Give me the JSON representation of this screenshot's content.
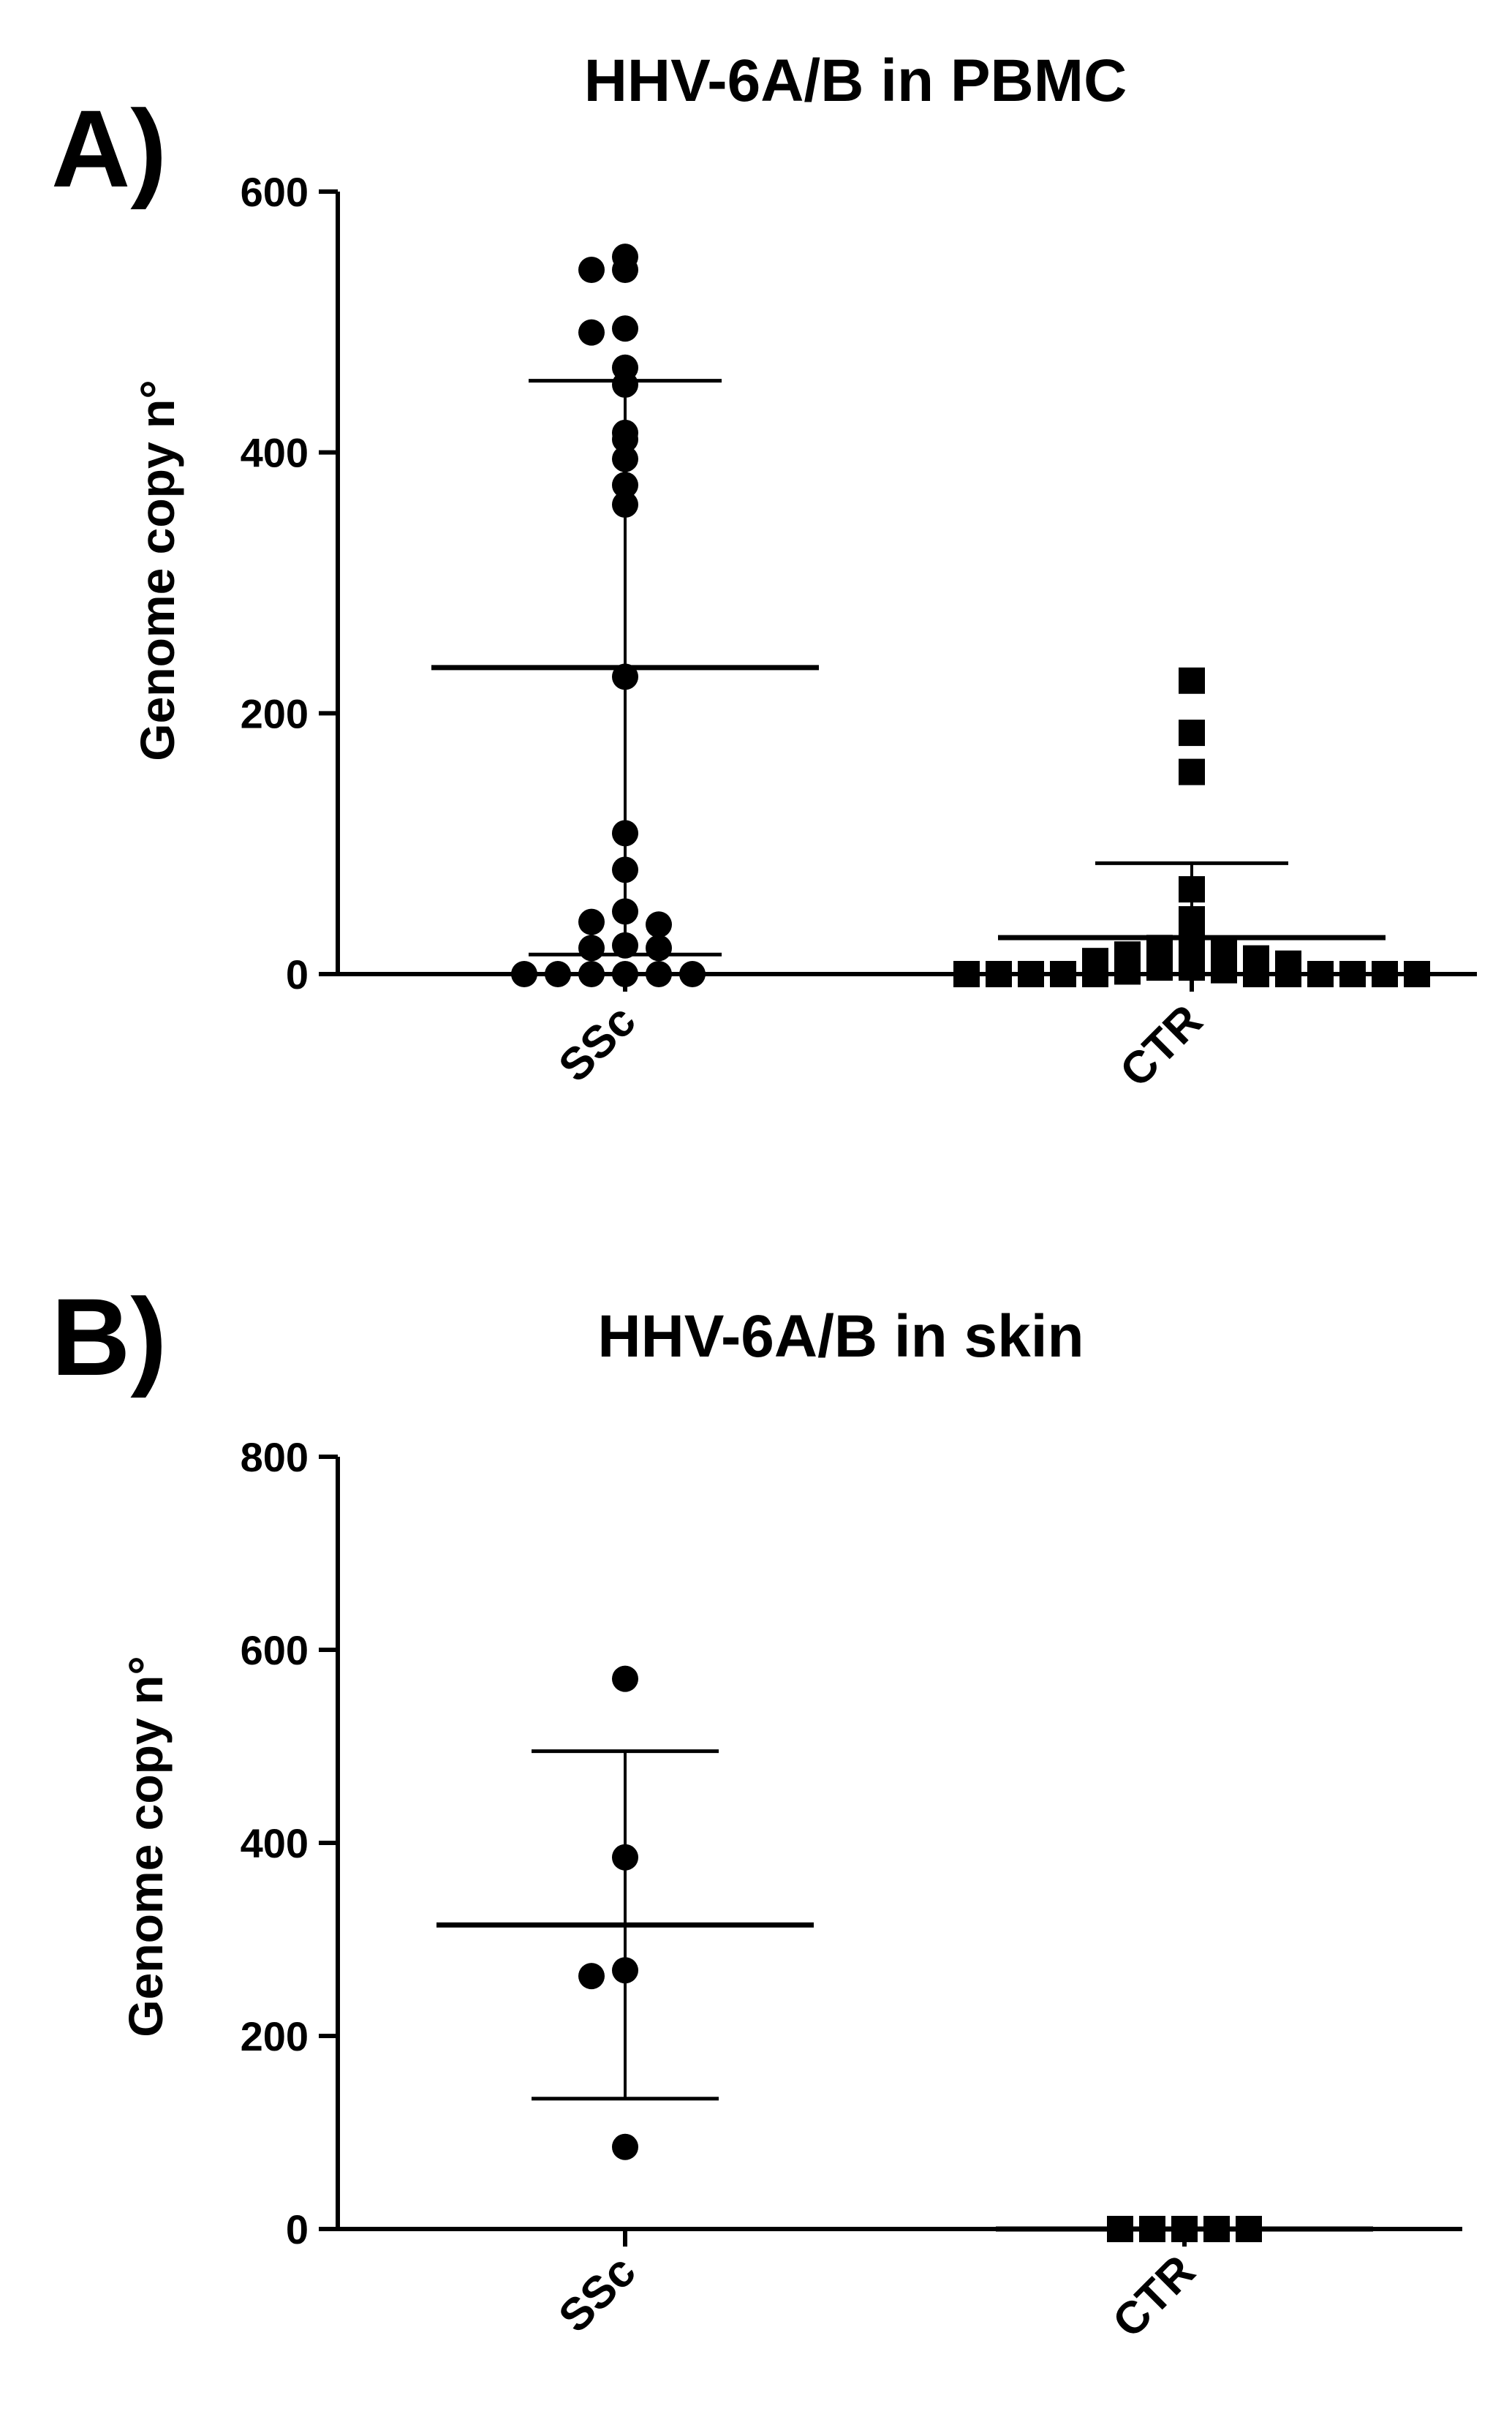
{
  "chart_data": [
    {
      "type": "scatter",
      "panel_label": "A)",
      "title": "HHV-6A/B in PBMC",
      "xlabel": "",
      "ylabel": "Genome copy n°",
      "categories": [
        "SSc",
        "CTR"
      ],
      "ylim": [
        0,
        600
      ],
      "yticks": [
        0,
        200,
        400,
        600
      ],
      "grid": false,
      "legend": "none",
      "series": [
        {
          "category": "SSc",
          "marker": "circle",
          "values": [
            550,
            540,
            540,
            495,
            492,
            465,
            452,
            415,
            410,
            395,
            375,
            360,
            228,
            108,
            80,
            48,
            40,
            38,
            22,
            20,
            20,
            0,
            0,
            0,
            0,
            0,
            0
          ],
          "mean": 235,
          "error_upper": 455,
          "error_lower": 15
        },
        {
          "category": "CTR",
          "marker": "square",
          "values": [
            225,
            185,
            155,
            65,
            42,
            25,
            22,
            20,
            18,
            15,
            12,
            10,
            8,
            5,
            5,
            3,
            2,
            0,
            0,
            0,
            0,
            0,
            0,
            0,
            0,
            0,
            0,
            0
          ],
          "mean": 28,
          "error_upper": 85,
          "error_lower": 0
        }
      ]
    },
    {
      "type": "scatter",
      "panel_label": "B)",
      "title": "HHV-6A/B in skin",
      "xlabel": "",
      "ylabel": "Genome copy n°",
      "categories": [
        "SSc",
        "CTR"
      ],
      "ylim": [
        0,
        800
      ],
      "yticks": [
        0,
        200,
        400,
        600,
        800
      ],
      "grid": false,
      "legend": "none",
      "series": [
        {
          "category": "SSc",
          "marker": "circle",
          "values": [
            570,
            385,
            268,
            262,
            85
          ],
          "mean": 315,
          "error_upper": 495,
          "error_lower": 135
        },
        {
          "category": "CTR",
          "marker": "square",
          "values": [
            0,
            0,
            0,
            0,
            0
          ],
          "mean": 0,
          "error_upper": 0,
          "error_lower": 0
        }
      ]
    }
  ]
}
